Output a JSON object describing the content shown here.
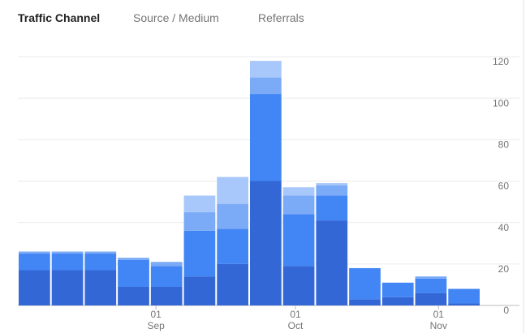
{
  "tabs": [
    "Traffic Channel",
    "Source / Medium",
    "Referrals"
  ],
  "chart_data": {
    "type": "stacked-bar",
    "categories": [
      null,
      null,
      null,
      null,
      null,
      null,
      null,
      null,
      null,
      null,
      null,
      null,
      null,
      null
    ],
    "series": [
      {
        "color": "#3367d6",
        "values": [
          17,
          17,
          17,
          9,
          9,
          14,
          20,
          60,
          19,
          41,
          3,
          4,
          6,
          1
        ]
      },
      {
        "color": "#4285f4",
        "values": [
          8,
          8,
          8,
          13,
          10,
          22,
          17,
          42,
          25,
          12,
          15,
          7,
          7,
          7
        ]
      },
      {
        "color": "#7baaf7",
        "values": [
          1,
          1,
          1,
          1,
          2,
          9,
          12,
          8,
          9,
          5,
          0,
          0,
          1,
          0
        ]
      },
      {
        "color": "#a8c7fa",
        "values": [
          0,
          0,
          0,
          0,
          0,
          8,
          13,
          8,
          4,
          1,
          0,
          0,
          0,
          0
        ]
      }
    ],
    "xlim": [
      0,
      14
    ],
    "xticks": [
      {
        "value": 4.18,
        "label": "01",
        "month": "Sep"
      },
      {
        "value": 8.4,
        "label": "01",
        "month": "Oct"
      },
      {
        "value": 12.73,
        "label": "01",
        "month": "Nov"
      }
    ],
    "ylim": [
      0,
      120
    ],
    "yticks": [
      0,
      20,
      40,
      60,
      80,
      100,
      120
    ],
    "grid": true
  }
}
